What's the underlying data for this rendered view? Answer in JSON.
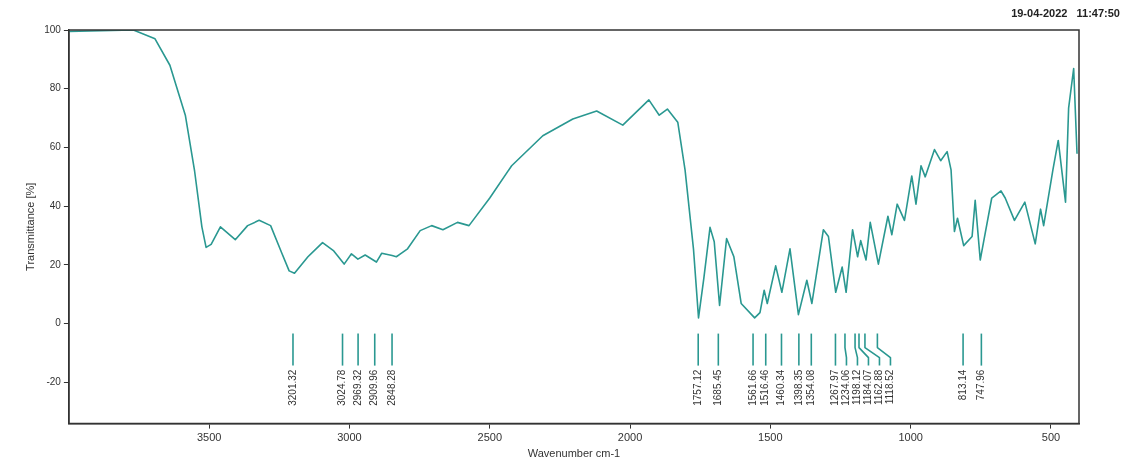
{
  "chart_data": {
    "type": "line",
    "xlabel": "Wavenumber cm-1",
    "ylabel": "Transmittance [%]",
    "x": [
      4000,
      3770,
      3693,
      3640,
      3585,
      3552,
      3526,
      3511,
      3493,
      3460,
      3407,
      3363,
      3322,
      3281,
      3241,
      3215,
      3196,
      3148,
      3096,
      3056,
      3019,
      2993,
      2970,
      2944,
      2904,
      2885,
      2848,
      2833,
      2793,
      2748,
      2707,
      2667,
      2615,
      2574,
      2500,
      2422,
      2311,
      2204,
      2119,
      2026,
      1933,
      1896,
      1867,
      1830,
      1804,
      1774,
      1756,
      1737,
      1715,
      1700,
      1681,
      1656,
      1630,
      1604,
      1556,
      1537,
      1522,
      1511,
      1481,
      1459,
      1430,
      1400,
      1370,
      1352,
      1311,
      1293,
      1267,
      1244,
      1230,
      1207,
      1189,
      1178,
      1159,
      1144,
      1115,
      1081,
      1067,
      1048,
      1022,
      996,
      981,
      963,
      948,
      915,
      893,
      870,
      856,
      844,
      833,
      811,
      781,
      770,
      752,
      711,
      678,
      663,
      630,
      593,
      556,
      537,
      526,
      493,
      474,
      448,
      437,
      419,
      407
    ],
    "series": [
      {
        "color": "#2a9891",
        "values": [
          99.5,
          100,
          97,
          88,
          71,
          52,
          33,
          26,
          27,
          33,
          28.6,
          33.4,
          35.2,
          33.4,
          24,
          18,
          17.2,
          22.8,
          27.6,
          24.8,
          20.3,
          23.8,
          22,
          23.4,
          21,
          24,
          23.2,
          22.8,
          25.5,
          31.7,
          33.4,
          32,
          34.5,
          33.4,
          42.8,
          53.8,
          64,
          69.7,
          72.4,
          67.6,
          76.2,
          71,
          73.1,
          68.6,
          52.4,
          25.5,
          2,
          15.5,
          32.8,
          27.9,
          6.2,
          29,
          22.8,
          6.9,
          2,
          3.8,
          11.4,
          6.9,
          19.7,
          10.7,
          25.5,
          3.1,
          14.8,
          6.9,
          32,
          29.7,
          10.7,
          19.3,
          10.7,
          32,
          22.8,
          28.3,
          21.7,
          34.5,
          20.3,
          36.6,
          30.3,
          40.7,
          35.2,
          50.3,
          40.7,
          53.8,
          50,
          59.3,
          55.5,
          58.6,
          52.4,
          31.4,
          35.9,
          26.6,
          29.7,
          42,
          21.7,
          42.8,
          45.2,
          42.8,
          35.2,
          41.4,
          27.2,
          39,
          33.4,
          52.4,
          62.4,
          41.4,
          73.4,
          86.9,
          57.9
        ]
      }
    ],
    "xlim": [
      4000,
      400
    ],
    "xticks": [
      {
        "value": 3500,
        "label": "3500"
      },
      {
        "value": 3000,
        "label": "3000"
      },
      {
        "value": 2500,
        "label": "2500"
      },
      {
        "value": 2000,
        "label": "2000"
      },
      {
        "value": 1500,
        "label": "1500"
      },
      {
        "value": 1000,
        "label": "1000"
      },
      {
        "value": 500,
        "label": "500"
      }
    ],
    "ylim": [
      -34,
      100
    ],
    "yticks": [
      100,
      80,
      60,
      40,
      20,
      0,
      -20
    ],
    "grid": false,
    "legend": false,
    "marker": "none",
    "line_style": "solid",
    "annotations": [
      "19-04-2022   11:47:50",
      {
        "text": "3201.32",
        "x": 3201.32
      },
      {
        "text": "3024.78",
        "x": 3024.78
      },
      {
        "text": "2969.32",
        "x": 2969.32
      },
      {
        "text": "2909.96",
        "x": 2909.96
      },
      {
        "text": "2848.28",
        "x": 2848.28
      },
      {
        "text": "1757.12",
        "x": 1757.12
      },
      {
        "text": "1685.45",
        "x": 1685.45
      },
      {
        "text": "1561.66",
        "x": 1561.66
      },
      {
        "text": "1516.46",
        "x": 1516.46
      },
      {
        "text": "1460.34",
        "x": 1460.34
      },
      {
        "text": "1398.35",
        "x": 1398.35
      },
      {
        "text": "1354.08",
        "x": 1354.08
      },
      {
        "text": "1267.97",
        "x": 1267.97
      },
      {
        "text": "1234.06",
        "x": 1234.06
      },
      {
        "text": "1198.12",
        "x": 1198.12
      },
      {
        "text": "1184.07",
        "x": 1184.07
      },
      {
        "text": "1162.88",
        "x": 1162.88
      },
      {
        "text": "1118.52",
        "x": 1118.52
      },
      {
        "text": "813.14",
        "x": 813.14
      },
      {
        "text": "747.96",
        "x": 747.96
      }
    ]
  }
}
